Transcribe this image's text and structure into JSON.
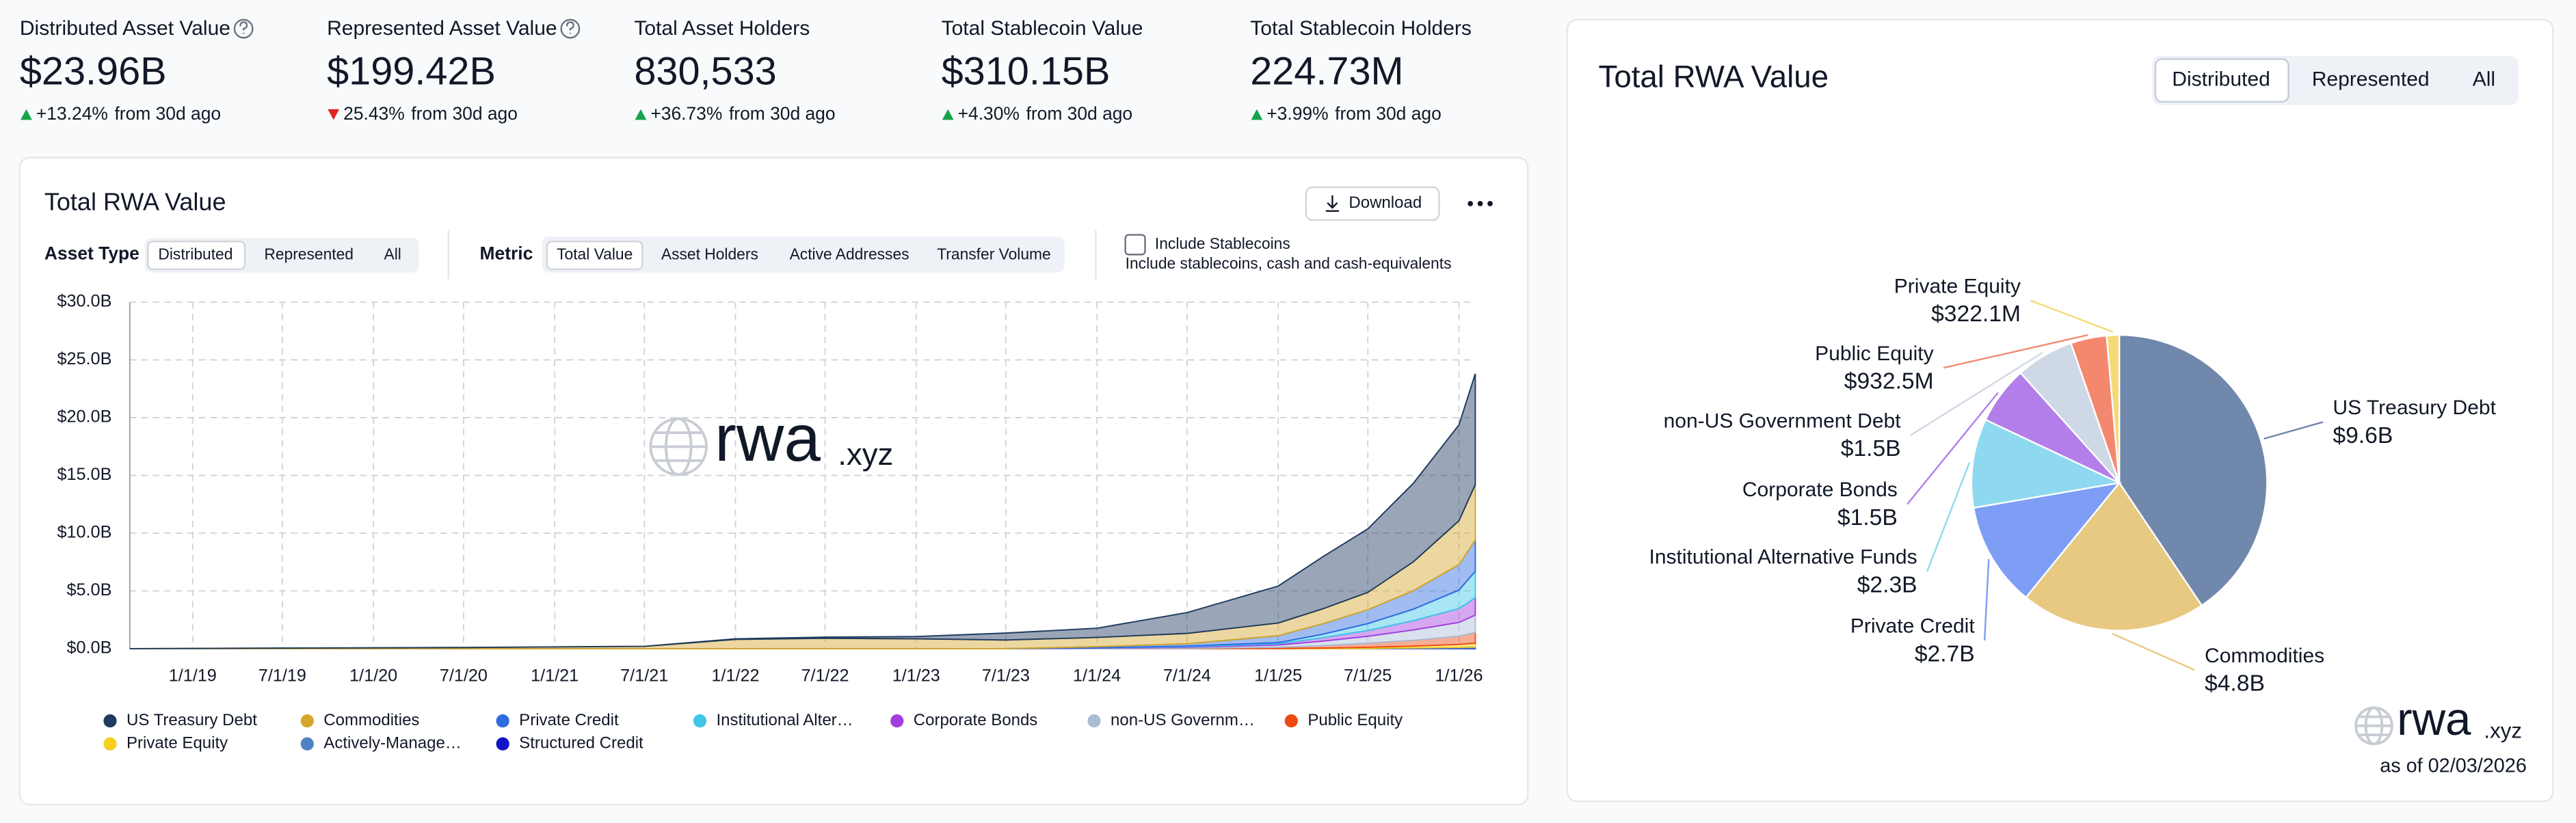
{
  "stats": [
    {
      "label": "Distributed Asset Value",
      "value": "$23.96B",
      "change": "+13.24%",
      "period": "from 30d ago",
      "trend": "up",
      "color": "#16a34a"
    },
    {
      "label": "Represented Asset Value",
      "value": "$199.42B",
      "change": "25.43%",
      "period": "from 30d ago",
      "trend": "down",
      "color": "#dc2626"
    },
    {
      "label": "Total Asset Holders",
      "value": "830,533",
      "change": "+36.73%",
      "period": "from 30d ago",
      "trend": "up",
      "color": "#16a34a"
    },
    {
      "label": "Total Stablecoin Value",
      "value": "$310.15B",
      "change": "+4.30%",
      "period": "from 30d ago",
      "trend": "up",
      "color": "#16a34a"
    },
    {
      "label": "Total Stablecoin Holders",
      "value": "224.73M",
      "change": "+3.99%",
      "period": "from 30d ago",
      "trend": "up",
      "color": "#16a34a"
    }
  ],
  "left_panel": {
    "download": "Download",
    "asset_type_label": "Asset Type",
    "asset_type_options": [
      "Distributed",
      "Represented",
      "All"
    ],
    "metric_label": "Metric",
    "metric_options": [
      "Total Value",
      "Asset Holders",
      "Active Addresses",
      "Transfer Volume"
    ],
    "stablecoin_checkbox": "Include Stablecoins",
    "stablecoin_note": "Include stablecoins, cash and cash-equivalents",
    "watermark": "rwa",
    "watermark_suffix": ".xyz"
  },
  "right_panel": {
    "tabs": [
      "Distributed",
      "Represented",
      "All"
    ],
    "watermark": "rwa",
    "watermark_suffix": ".xyz",
    "as_of": "as of 02/03/2026"
  },
  "chart_data": [
    {
      "type": "stacked-area",
      "title": "Total RWA Value",
      "x": [
        "2018-08-27",
        "2019-07-01",
        "2020-07-01",
        "2021-07-01",
        "2022-01-01",
        "2022-07-01",
        "2023-01-01",
        "2023-07-01",
        "2024-01-01",
        "2024-07-01",
        "2025-01-01",
        "2025-04-01",
        "2025-07-01",
        "2025-10-01",
        "2026-01-01",
        "2026-02-03"
      ],
      "xlim": [
        "2018-08-27",
        "2026-02-03"
      ],
      "xticks": [
        {
          "value": "2019-01-01",
          "label": "1/1/19"
        },
        {
          "value": "2019-07-01",
          "label": "7/1/19"
        },
        {
          "value": "2020-01-01",
          "label": "1/1/20"
        },
        {
          "value": "2020-07-01",
          "label": "7/1/20"
        },
        {
          "value": "2021-01-01",
          "label": "1/1/21"
        },
        {
          "value": "2021-07-01",
          "label": "7/1/21"
        },
        {
          "value": "2022-01-01",
          "label": "1/1/22"
        },
        {
          "value": "2022-07-01",
          "label": "7/1/22"
        },
        {
          "value": "2023-01-01",
          "label": "1/1/23"
        },
        {
          "value": "2023-07-01",
          "label": "7/1/23"
        },
        {
          "value": "2024-01-01",
          "label": "1/1/24"
        },
        {
          "value": "2024-07-01",
          "label": "7/1/24"
        },
        {
          "value": "2025-01-01",
          "label": "1/1/25"
        },
        {
          "value": "2025-07-01",
          "label": "7/1/25"
        },
        {
          "value": "2026-01-01",
          "label": "1/1/26"
        }
      ],
      "ylim": [
        0,
        30
      ],
      "yticks": [
        {
          "value": 0,
          "label": "$0.0B"
        },
        {
          "value": 5,
          "label": "$5.0B"
        },
        {
          "value": 10,
          "label": "$10.0B"
        },
        {
          "value": 15,
          "label": "$15.0B"
        },
        {
          "value": 20,
          "label": "$20.0B"
        },
        {
          "value": 25,
          "label": "$25.0B"
        },
        {
          "value": 30,
          "label": "$30.0B"
        }
      ],
      "grid": true,
      "series": [
        {
          "name": "US Treasury Debt",
          "color": "#1e3a5f",
          "values": [
            0,
            0,
            0,
            0,
            0.05,
            0.1,
            0.2,
            0.6,
            0.8,
            1.8,
            3.2,
            4.5,
            5.5,
            6.8,
            8.3,
            9.6
          ]
        },
        {
          "name": "Commodities",
          "color": "#d4a72c",
          "values": [
            0,
            0.05,
            0.1,
            0.2,
            0.8,
            0.9,
            0.85,
            0.75,
            0.8,
            0.9,
            1.1,
            1.3,
            1.5,
            2.5,
            3.8,
            4.8
          ]
        },
        {
          "name": "Private Credit",
          "color": "#2f6be0",
          "values": [
            0,
            0,
            0,
            0,
            0,
            0,
            0,
            0,
            0.1,
            0.2,
            0.6,
            0.9,
            1.2,
            1.6,
            2.2,
            2.7
          ]
        },
        {
          "name": "Institutional Alter…",
          "color": "#3fc6e8",
          "values": [
            0,
            0,
            0,
            0,
            0,
            0,
            0,
            0,
            0,
            0.05,
            0.1,
            0.3,
            0.6,
            1.0,
            1.6,
            2.3
          ]
        },
        {
          "name": "Corporate Bonds",
          "color": "#a23de0",
          "values": [
            0,
            0,
            0,
            0,
            0,
            0,
            0,
            0,
            0.02,
            0.05,
            0.1,
            0.3,
            0.5,
            0.8,
            1.2,
            1.5
          ]
        },
        {
          "name": "non-US Governm…",
          "color": "#a9bdd6",
          "values": [
            0,
            0,
            0,
            0,
            0,
            0,
            0,
            0,
            0.05,
            0.1,
            0.2,
            0.4,
            0.6,
            0.9,
            1.2,
            1.5
          ]
        },
        {
          "name": "Public Equity",
          "color": "#f04a14",
          "values": [
            0,
            0,
            0,
            0,
            0,
            0,
            0,
            0,
            0,
            0.02,
            0.1,
            0.2,
            0.35,
            0.5,
            0.7,
            0.93
          ]
        },
        {
          "name": "Private Equity",
          "color": "#f5d020",
          "values": [
            0,
            0,
            0,
            0,
            0,
            0,
            0,
            0,
            0,
            0,
            0.02,
            0.05,
            0.1,
            0.15,
            0.25,
            0.32
          ]
        },
        {
          "name": "Actively-Manage…",
          "color": "#4f84c4",
          "values": [
            0,
            0,
            0,
            0,
            0,
            0,
            0,
            0,
            0,
            0,
            0,
            0,
            0.02,
            0.05,
            0.08,
            0.1
          ]
        },
        {
          "name": "Structured Credit",
          "color": "#1313c8",
          "values": [
            0,
            0,
            0,
            0,
            0,
            0,
            0,
            0,
            0,
            0,
            0,
            0,
            0,
            0.02,
            0.04,
            0.05
          ]
        }
      ]
    },
    {
      "type": "pie",
      "title": "Total RWA Value",
      "categories": [
        "US Treasury Debt",
        "Commodities",
        "Private Credit",
        "Institutional Alternative Funds",
        "Corporate Bonds",
        "non-US Government Debt",
        "Public Equity",
        "Private Equity"
      ],
      "values": [
        9600000000,
        4800000000,
        2700000000,
        2300000000,
        1500000000,
        1500000000,
        932500000,
        322100000
      ],
      "value_labels": [
        "$9.6B",
        "$4.8B",
        "$2.7B",
        "$2.3B",
        "$1.5B",
        "$1.5B",
        "$932.5M",
        "$322.1M"
      ],
      "colors": [
        "#7088ab",
        "#e8c982",
        "#7e9ef6",
        "#8fd9f0",
        "#b37ee9",
        "#cfd8e6",
        "#f4886f",
        "#f6d977"
      ]
    }
  ]
}
